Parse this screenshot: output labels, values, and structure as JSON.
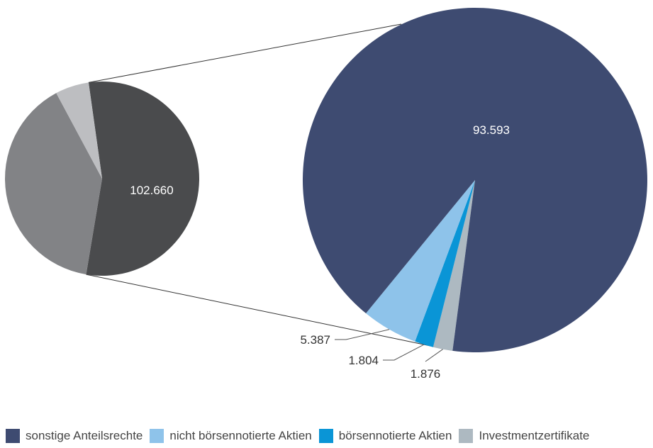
{
  "chart_data": [
    {
      "type": "pie",
      "slices": [
        {
          "value": 102.66,
          "label": "102.660",
          "color": "#4a4b4d"
        },
        {
          "value": 74.0,
          "label": "",
          "color": "#828386"
        },
        {
          "value": 10.5,
          "label": "",
          "color": "#bdbec1"
        }
      ],
      "legend": "none"
    },
    {
      "type": "pie",
      "slices": [
        {
          "value": 93.593,
          "label": "93.593",
          "color": "#3e4b71"
        },
        {
          "value": 5.387,
          "label": "5.387",
          "color": "#8ec3ea"
        },
        {
          "value": 1.804,
          "label": "1.804",
          "color": "#0a95d6"
        },
        {
          "value": 1.876,
          "label": "1.876",
          "color": "#adb9c1"
        }
      ],
      "legend": "bottom"
    }
  ],
  "legend": [
    {
      "label": "sonstige Anteilsrechte",
      "color": "#3e4b71"
    },
    {
      "label": "nicht börsennotierte Aktien",
      "color": "#8ec3ea"
    },
    {
      "label": "börsennotierte Aktien",
      "color": "#0a95d6"
    },
    {
      "label": "Investmentzertifikate",
      "color": "#adb9c1"
    }
  ]
}
